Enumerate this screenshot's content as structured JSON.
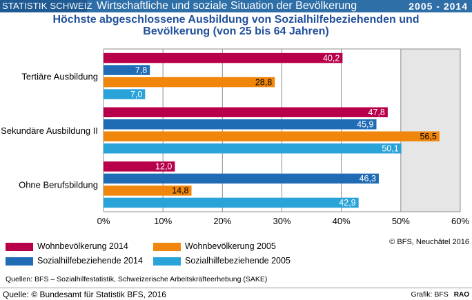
{
  "header": {
    "brand": "STATISTIK SCHWEIZ",
    "title": "Wirtschaftliche und soziale Situation der Bevölkerung",
    "years": "2005 - 2014"
  },
  "chart_title_line1": "Höchste abgeschlossene Ausbildung von Sozialhilfebeziehenden und",
  "chart_title_line2": "Bevölkerung (von 25 bis 64 Jahren)",
  "chart_data": {
    "type": "bar",
    "orientation": "horizontal",
    "categories": [
      "Tertiäre Ausbildung",
      "Sekundäre Ausbildung II",
      "Ohne Berufsbildung"
    ],
    "series": [
      {
        "name": "Wohnbevölkerung 2014",
        "color": "#b8004a",
        "values": [
          40.2,
          47.8,
          12.0
        ],
        "labels": [
          "40,2",
          "47,8",
          "12,0"
        ]
      },
      {
        "name": "Sozialhilfebeziehende 2014",
        "color": "#1f6cb4",
        "values": [
          7.8,
          45.9,
          46.3
        ],
        "labels": [
          "7,8",
          "45,9",
          "46,3"
        ]
      },
      {
        "name": "Wohnbevölkerung 2005",
        "color": "#f0860c",
        "values": [
          28.8,
          56.5,
          14.8
        ],
        "labels": [
          "28,8",
          "56,5",
          "14,8"
        ]
      },
      {
        "name": "Sozialhilfebeziehende 2005",
        "color": "#2aa3d8",
        "values": [
          7.0,
          50.1,
          42.9
        ],
        "labels": [
          "7,0",
          "50,1",
          "42,9"
        ]
      }
    ],
    "xlim": [
      0,
      60
    ],
    "xticks": [
      "0%",
      "10%",
      "20%",
      "30%",
      "40%",
      "50%",
      "60%"
    ],
    "grid": true,
    "legend_position": "bottom"
  },
  "credit_top": "© BFS, Neuchâtel 2016",
  "sources": "Quellen: BFS – Sozialhilfestatistik,  Schweizerische Arbeitskräfteerhebung  (SAKE)",
  "footer": {
    "left": "Quelle: © Bundesamt für Statistik BFS, 2016",
    "right": "Grafik: BFS",
    "code": "RAO"
  }
}
